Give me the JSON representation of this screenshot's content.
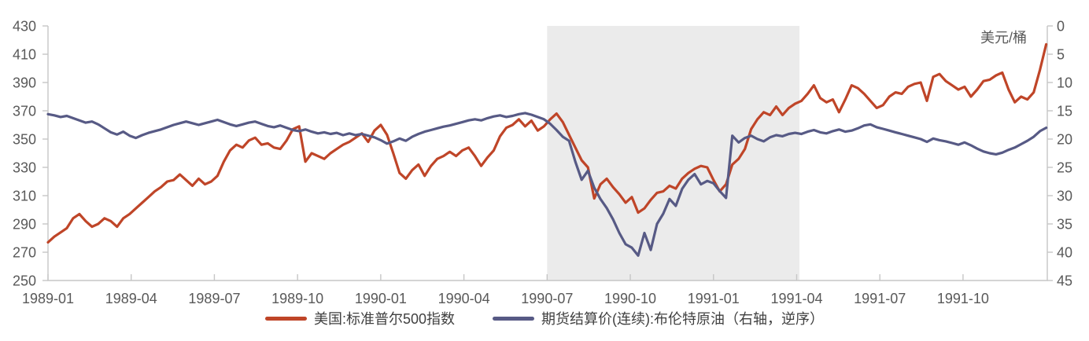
{
  "chart": {
    "right_axis_unit_label": "美元/桶",
    "legend": [
      {
        "label": "美国:标准普尔500指数",
        "color": "#bf4528"
      },
      {
        "label": "期货结算价(连续):布伦特原油（右轴，逆序）",
        "color": "#575a85"
      }
    ]
  },
  "chart_data": {
    "type": "line",
    "title": "",
    "x_axis": {
      "tick_labels": [
        "1989-01",
        "1989-04",
        "1989-07",
        "1989-10",
        "1990-01",
        "1990-04",
        "1990-07",
        "1990-10",
        "1991-01",
        "1991-04",
        "1991-07",
        "1991-10"
      ],
      "tick_month_index": [
        0,
        3,
        6,
        9,
        12,
        15,
        18,
        21,
        24,
        27,
        30,
        33
      ],
      "range_months": 36,
      "start": "1989-01",
      "end": "1991-12"
    },
    "left_axis": {
      "ticks": [
        430,
        410,
        390,
        370,
        350,
        330,
        310,
        290,
        270,
        250
      ],
      "min": 250,
      "max": 430,
      "grid": false
    },
    "right_axis": {
      "ticks": [
        0,
        5,
        10,
        15,
        20,
        25,
        30,
        35,
        40,
        45
      ],
      "min": 0,
      "max": 45,
      "reversed": true,
      "unit": "美元/桶"
    },
    "shaded_region": {
      "from_label": "1990-07",
      "to_label": "1991-04",
      "from_month_index": 18,
      "to_month_index": 27.1,
      "color": "#ebebeb"
    },
    "sampling": "approx weekly, Jan 1989 - Dec 1991",
    "series": [
      {
        "name": "美国:标准普尔500指数",
        "axis": "left",
        "color": "#bf4528",
        "values": [
          277,
          281,
          284,
          287,
          294,
          297,
          292,
          288,
          290,
          294,
          292,
          288,
          294,
          297,
          301,
          305,
          309,
          313,
          316,
          320,
          321,
          325,
          321,
          317,
          322,
          318,
          320,
          324,
          334,
          342,
          346,
          344,
          349,
          351,
          346,
          347,
          344,
          343,
          349,
          357,
          359,
          334,
          340,
          338,
          336,
          340,
          343,
          346,
          348,
          351,
          354,
          348,
          356,
          360,
          353,
          340,
          326,
          322,
          328,
          332,
          324,
          331,
          336,
          338,
          341,
          338,
          342,
          344,
          338,
          331,
          337,
          342,
          352,
          358,
          360,
          364,
          359,
          363,
          356,
          359,
          364,
          368,
          362,
          353,
          344,
          335,
          330,
          308,
          318,
          322,
          316,
          311,
          305,
          309,
          298,
          301,
          307,
          312,
          313,
          317,
          315,
          322,
          326,
          329,
          331,
          330,
          321,
          313,
          318,
          332,
          336,
          343,
          357,
          364,
          369,
          367,
          373,
          367,
          372,
          375,
          377,
          382,
          388,
          379,
          376,
          378,
          369,
          378,
          388,
          386,
          382,
          377,
          372,
          374,
          380,
          383,
          382,
          387,
          389,
          390,
          377,
          394,
          396,
          391,
          388,
          385,
          387,
          380,
          385,
          391,
          392,
          395,
          397,
          385,
          376,
          380,
          378,
          383,
          399,
          417
        ]
      },
      {
        "name": "期货结算价(连续):布伦特原油（右轴，逆序）",
        "axis": "right",
        "color": "#575a85",
        "values": [
          15.6,
          15.8,
          16.1,
          15.9,
          16.3,
          16.7,
          17.1,
          16.9,
          17.4,
          18.1,
          18.8,
          19.2,
          18.7,
          19.4,
          19.8,
          19.3,
          18.9,
          18.6,
          18.3,
          17.9,
          17.5,
          17.2,
          16.9,
          17.2,
          17.5,
          17.2,
          16.9,
          16.6,
          17.0,
          17.4,
          17.7,
          17.4,
          17.1,
          16.9,
          17.3,
          17.7,
          17.9,
          17.6,
          18.0,
          18.4,
          18.6,
          18.3,
          18.7,
          19.0,
          18.8,
          19.1,
          18.9,
          19.3,
          19.0,
          19.3,
          19.1,
          19.4,
          19.7,
          20.2,
          20.8,
          20.4,
          19.9,
          20.3,
          19.6,
          19.1,
          18.7,
          18.4,
          18.1,
          17.8,
          17.6,
          17.3,
          17.0,
          16.7,
          16.5,
          16.7,
          16.3,
          16.0,
          15.8,
          16.1,
          15.9,
          15.6,
          15.4,
          15.7,
          16.1,
          16.5,
          17.3,
          18.4,
          19.6,
          20.3,
          24.0,
          27.2,
          25.6,
          28.6,
          30.6,
          32.2,
          34.2,
          36.6,
          38.6,
          39.2,
          40.6,
          36.6,
          39.6,
          35.0,
          33.2,
          30.6,
          31.8,
          28.8,
          27.2,
          26.2,
          28.0,
          27.4,
          27.8,
          29.2,
          30.4,
          19.4,
          20.6,
          19.8,
          19.4,
          20.0,
          20.4,
          19.7,
          19.3,
          19.5,
          19.1,
          18.9,
          19.1,
          18.7,
          18.4,
          18.8,
          19.0,
          18.6,
          18.3,
          18.7,
          18.5,
          18.1,
          17.6,
          17.4,
          17.9,
          18.2,
          18.5,
          18.8,
          19.1,
          19.4,
          19.7,
          20.0,
          20.5,
          19.9,
          20.2,
          20.4,
          20.7,
          21.0,
          20.6,
          21.1,
          21.7,
          22.2,
          22.5,
          22.7,
          22.4,
          21.9,
          21.5,
          20.9,
          20.3,
          19.6,
          18.6,
          18.0
        ]
      }
    ]
  }
}
